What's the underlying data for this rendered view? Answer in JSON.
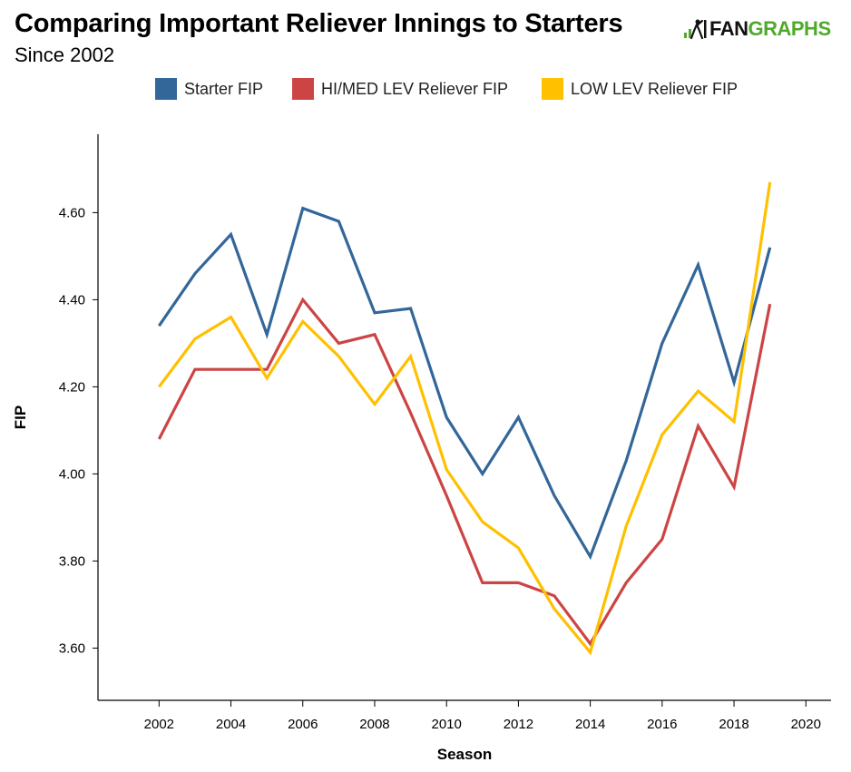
{
  "header": {
    "title": "Comparing Important Reliever Innings to Starters",
    "subtitle": "Since 2002",
    "logo_fan": "FAN",
    "logo_graphs": "GRAPHS"
  },
  "chart_data": {
    "type": "line",
    "xlabel": "Season",
    "ylabel": "FIP",
    "xlim": [
      2000.3,
      2020.7
    ],
    "ylim": [
      3.48,
      4.78
    ],
    "x_ticks": [
      2002,
      2004,
      2006,
      2008,
      2010,
      2012,
      2014,
      2016,
      2018,
      2020
    ],
    "y_ticks": [
      3.6,
      3.8,
      4.0,
      4.2,
      4.4,
      4.6
    ],
    "y_tick_labels": [
      "3.60",
      "3.80",
      "4.00",
      "4.20",
      "4.40",
      "4.60"
    ],
    "x": [
      2002,
      2003,
      2004,
      2005,
      2006,
      2007,
      2008,
      2009,
      2010,
      2011,
      2012,
      2013,
      2014,
      2015,
      2016,
      2017,
      2018,
      2019
    ],
    "legend_position": "top",
    "series": [
      {
        "name": "Starter FIP",
        "color": "#336699",
        "values": [
          4.34,
          4.46,
          4.55,
          4.32,
          4.61,
          4.58,
          4.37,
          4.38,
          4.13,
          4.0,
          4.13,
          3.95,
          3.81,
          4.03,
          4.3,
          4.48,
          4.21,
          4.52
        ]
      },
      {
        "name": "HI/MED LEV Reliever FIP",
        "color": "#cc4444",
        "values": [
          4.08,
          4.24,
          4.24,
          4.24,
          4.4,
          4.3,
          4.32,
          4.14,
          3.95,
          3.75,
          3.75,
          3.72,
          3.61,
          3.75,
          3.85,
          4.11,
          3.97,
          4.39
        ]
      },
      {
        "name": "LOW LEV Reliever FIP",
        "color": "#ffc000",
        "values": [
          4.2,
          4.31,
          4.36,
          4.22,
          4.35,
          4.27,
          4.16,
          4.27,
          4.01,
          3.89,
          3.83,
          3.69,
          3.59,
          3.88,
          4.09,
          4.19,
          4.12,
          4.67
        ]
      }
    ]
  }
}
